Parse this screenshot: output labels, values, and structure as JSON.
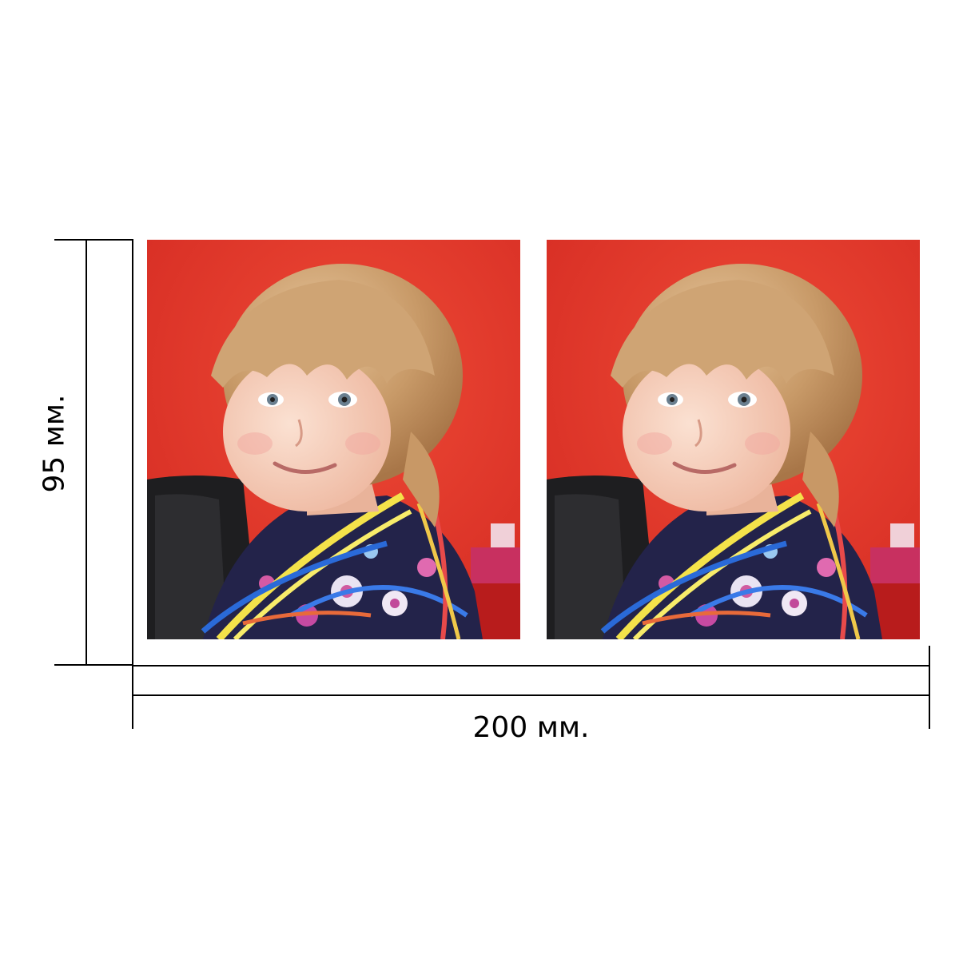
{
  "dimensions": {
    "height_label": "95 мм.",
    "width_label": "200 мм."
  },
  "photos": [
    {
      "name": "photo-left",
      "subject": "smiling-girl-portrait"
    },
    {
      "name": "photo-right",
      "subject": "smiling-girl-portrait"
    }
  ],
  "colors": {
    "background": "#ffffff",
    "photo_backdrop": "#e0322a",
    "dimension_lines": "#000000"
  }
}
